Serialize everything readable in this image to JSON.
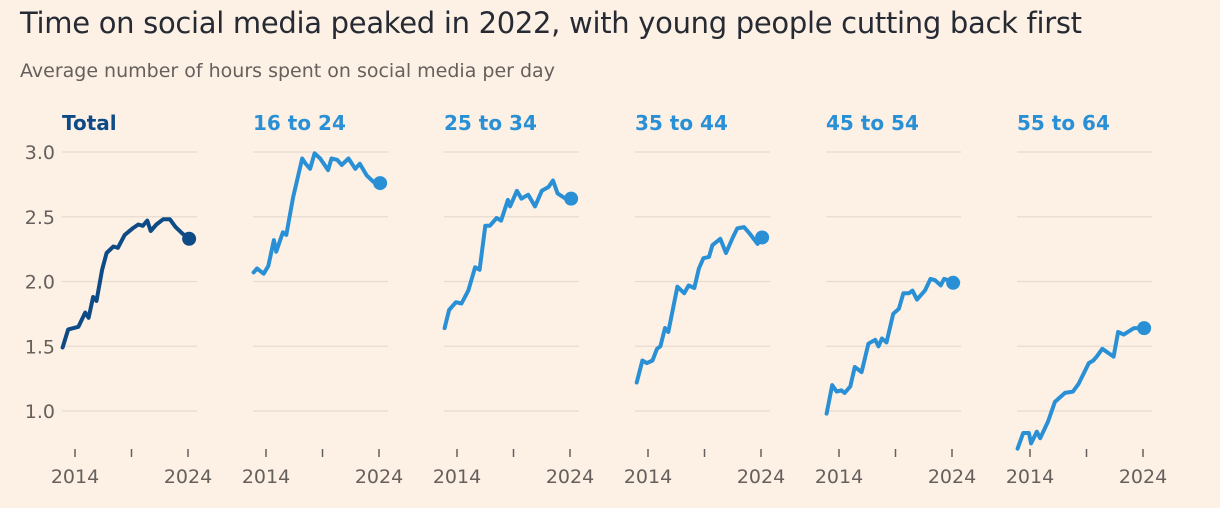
{
  "chart_data": {
    "type": "line",
    "title": "Time on social media peaked in 2022, with young people cutting back first",
    "subtitle": "Average number of hours spent on social media per day",
    "xlabel": "",
    "ylabel": "",
    "ylim": [
      0.7,
      3.0
    ],
    "xlim": [
      2012.9,
      2024.3
    ],
    "yticks": [
      "3.0",
      "2.5",
      "2.0",
      "1.5",
      "1.0"
    ],
    "ytick_values": [
      3.0,
      2.5,
      2.0,
      1.5,
      1.0
    ],
    "xtick_values": [
      2014,
      2019,
      2024
    ],
    "xtick_labels": [
      "2014",
      "",
      "2024"
    ],
    "grid": true,
    "layout": "small multiples, shared y axis",
    "colors": {
      "total": "#0d4a86",
      "age_groups": "#2a90d6",
      "background": "#fdf1e6",
      "grid": "#e7dbd0"
    },
    "series": [
      {
        "name": "Total",
        "color": "#0d4a86",
        "points": [
          [
            2012.9,
            1.49
          ],
          [
            2013.4,
            1.63
          ],
          [
            2014.3,
            1.65
          ],
          [
            2014.9,
            1.76
          ],
          [
            2015.2,
            1.72
          ],
          [
            2015.6,
            1.88
          ],
          [
            2015.9,
            1.85
          ],
          [
            2016.4,
            2.09
          ],
          [
            2016.8,
            2.22
          ],
          [
            2017.4,
            2.27
          ],
          [
            2017.8,
            2.26
          ],
          [
            2018.4,
            2.36
          ],
          [
            2019.1,
            2.41
          ],
          [
            2019.6,
            2.44
          ],
          [
            2020.0,
            2.43
          ],
          [
            2020.4,
            2.47
          ],
          [
            2020.7,
            2.39
          ],
          [
            2021.2,
            2.44
          ],
          [
            2021.8,
            2.48
          ],
          [
            2022.4,
            2.48
          ],
          [
            2022.9,
            2.42
          ],
          [
            2023.5,
            2.37
          ],
          [
            2024.1,
            2.33
          ]
        ]
      },
      {
        "name": "16 to 24",
        "color": "#2a90d6",
        "points": [
          [
            2012.9,
            2.07
          ],
          [
            2013.2,
            2.1
          ],
          [
            2013.8,
            2.06
          ],
          [
            2014.2,
            2.12
          ],
          [
            2014.7,
            2.32
          ],
          [
            2014.9,
            2.23
          ],
          [
            2015.5,
            2.38
          ],
          [
            2015.8,
            2.36
          ],
          [
            2016.4,
            2.65
          ],
          [
            2017.2,
            2.95
          ],
          [
            2017.5,
            2.91
          ],
          [
            2017.9,
            2.87
          ],
          [
            2018.3,
            2.99
          ],
          [
            2018.8,
            2.95
          ],
          [
            2019.5,
            2.86
          ],
          [
            2019.8,
            2.95
          ],
          [
            2020.3,
            2.94
          ],
          [
            2020.7,
            2.9
          ],
          [
            2021.3,
            2.95
          ],
          [
            2021.9,
            2.87
          ],
          [
            2022.3,
            2.91
          ],
          [
            2022.9,
            2.82
          ],
          [
            2023.5,
            2.77
          ],
          [
            2024.1,
            2.76
          ]
        ]
      },
      {
        "name": "25 to 34",
        "color": "#2a90d6",
        "points": [
          [
            2012.9,
            1.64
          ],
          [
            2013.3,
            1.78
          ],
          [
            2013.9,
            1.84
          ],
          [
            2014.4,
            1.83
          ],
          [
            2015.0,
            1.93
          ],
          [
            2015.6,
            2.11
          ],
          [
            2016.0,
            2.09
          ],
          [
            2016.5,
            2.43
          ],
          [
            2016.9,
            2.43
          ],
          [
            2017.5,
            2.49
          ],
          [
            2017.9,
            2.47
          ],
          [
            2018.5,
            2.63
          ],
          [
            2018.7,
            2.58
          ],
          [
            2019.3,
            2.7
          ],
          [
            2019.7,
            2.64
          ],
          [
            2020.3,
            2.67
          ],
          [
            2020.9,
            2.58
          ],
          [
            2021.5,
            2.7
          ],
          [
            2022.1,
            2.73
          ],
          [
            2022.5,
            2.78
          ],
          [
            2022.9,
            2.68
          ],
          [
            2023.6,
            2.64
          ],
          [
            2024.1,
            2.64
          ]
        ]
      },
      {
        "name": "35 to 44",
        "color": "#2a90d6",
        "points": [
          [
            2013.0,
            1.22
          ],
          [
            2013.5,
            1.39
          ],
          [
            2013.9,
            1.37
          ],
          [
            2014.4,
            1.39
          ],
          [
            2014.8,
            1.48
          ],
          [
            2015.1,
            1.5
          ],
          [
            2015.5,
            1.64
          ],
          [
            2015.8,
            1.61
          ],
          [
            2016.6,
            1.96
          ],
          [
            2017.2,
            1.91
          ],
          [
            2017.6,
            1.97
          ],
          [
            2018.1,
            1.95
          ],
          [
            2018.5,
            2.1
          ],
          [
            2018.9,
            2.18
          ],
          [
            2019.4,
            2.19
          ],
          [
            2019.7,
            2.28
          ],
          [
            2020.4,
            2.33
          ],
          [
            2020.9,
            2.22
          ],
          [
            2021.5,
            2.34
          ],
          [
            2021.9,
            2.41
          ],
          [
            2022.5,
            2.42
          ],
          [
            2023.0,
            2.37
          ],
          [
            2023.7,
            2.29
          ],
          [
            2024.1,
            2.34
          ]
        ]
      },
      {
        "name": "45 to 54",
        "color": "#2a90d6",
        "points": [
          [
            2012.9,
            0.98
          ],
          [
            2013.4,
            1.2
          ],
          [
            2013.8,
            1.15
          ],
          [
            2014.2,
            1.16
          ],
          [
            2014.5,
            1.14
          ],
          [
            2015.0,
            1.19
          ],
          [
            2015.4,
            1.34
          ],
          [
            2016.0,
            1.3
          ],
          [
            2016.6,
            1.52
          ],
          [
            2017.2,
            1.55
          ],
          [
            2017.5,
            1.5
          ],
          [
            2017.8,
            1.56
          ],
          [
            2018.2,
            1.53
          ],
          [
            2018.8,
            1.75
          ],
          [
            2019.3,
            1.79
          ],
          [
            2019.7,
            1.91
          ],
          [
            2020.2,
            1.91
          ],
          [
            2020.5,
            1.93
          ],
          [
            2020.9,
            1.86
          ],
          [
            2021.6,
            1.93
          ],
          [
            2022.1,
            2.02
          ],
          [
            2022.5,
            2.01
          ],
          [
            2023.0,
            1.97
          ],
          [
            2023.3,
            2.02
          ],
          [
            2023.7,
            2.01
          ],
          [
            2024.1,
            1.99
          ]
        ]
      },
      {
        "name": "55 to 64",
        "color": "#2a90d6",
        "points": [
          [
            2012.9,
            0.71
          ],
          [
            2013.4,
            0.83
          ],
          [
            2013.9,
            0.83
          ],
          [
            2014.1,
            0.75
          ],
          [
            2014.6,
            0.84
          ],
          [
            2014.9,
            0.79
          ],
          [
            2015.6,
            0.92
          ],
          [
            2016.2,
            1.07
          ],
          [
            2017.1,
            1.14
          ],
          [
            2017.8,
            1.15
          ],
          [
            2018.3,
            1.21
          ],
          [
            2019.2,
            1.37
          ],
          [
            2019.6,
            1.39
          ],
          [
            2019.9,
            1.42
          ],
          [
            2020.4,
            1.48
          ],
          [
            2021.4,
            1.42
          ],
          [
            2021.8,
            1.61
          ],
          [
            2022.3,
            1.59
          ],
          [
            2023.2,
            1.64
          ],
          [
            2024.1,
            1.64
          ]
        ]
      }
    ]
  }
}
